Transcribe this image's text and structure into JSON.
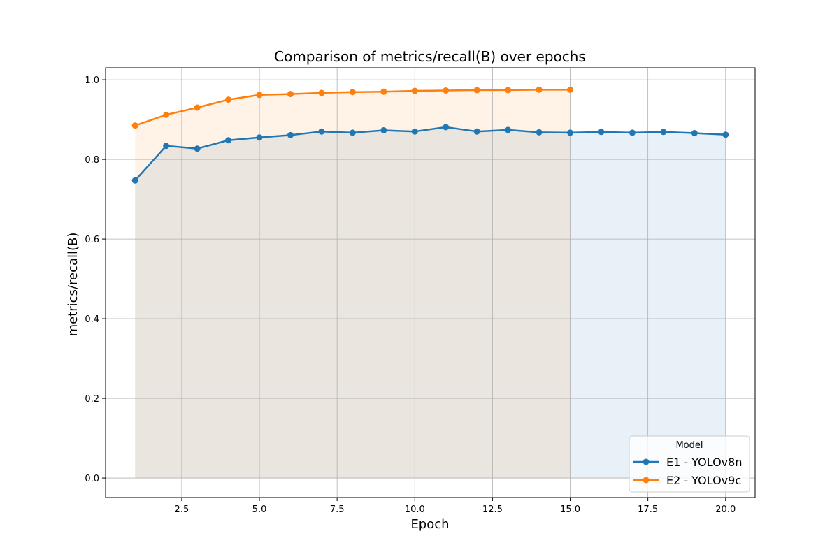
{
  "chart_data": {
    "type": "line",
    "title": "Comparison of metrics/recall(B) over epochs",
    "xlabel": "Epoch",
    "ylabel": "metrics/recall(B)",
    "xlim": [
      0.05,
      20.95
    ],
    "ylim": [
      -0.049,
      1.03
    ],
    "xticks": [
      2.5,
      5.0,
      7.5,
      10.0,
      12.5,
      15.0,
      17.5,
      20.0
    ],
    "xtick_labels": [
      "2.5",
      "5.0",
      "7.5",
      "10.0",
      "12.5",
      "15.0",
      "17.5",
      "20.0"
    ],
    "yticks": [
      0.0,
      0.2,
      0.4,
      0.6,
      0.8,
      1.0
    ],
    "ytick_labels": [
      "0.0",
      "0.2",
      "0.4",
      "0.6",
      "0.8",
      "1.0"
    ],
    "grid": true,
    "fill_under": true,
    "legend": {
      "title": "Model",
      "position": "bottom-right"
    },
    "series": [
      {
        "name": "E1 - YOLOv8n",
        "color": "#1f77b4",
        "x": [
          1,
          2,
          3,
          4,
          5,
          6,
          7,
          8,
          9,
          10,
          11,
          12,
          13,
          14,
          15,
          16,
          17,
          18,
          19,
          20
        ],
        "values": [
          0.747,
          0.834,
          0.827,
          0.848,
          0.855,
          0.861,
          0.87,
          0.867,
          0.873,
          0.87,
          0.881,
          0.87,
          0.874,
          0.868,
          0.867,
          0.869,
          0.867,
          0.869,
          0.866,
          0.862
        ]
      },
      {
        "name": "E2 - YOLOv9c",
        "color": "#ff7f0e",
        "x": [
          1,
          2,
          3,
          4,
          5,
          6,
          7,
          8,
          9,
          10,
          11,
          12,
          13,
          14,
          15
        ],
        "values": [
          0.885,
          0.912,
          0.93,
          0.95,
          0.962,
          0.964,
          0.967,
          0.969,
          0.97,
          0.972,
          0.973,
          0.974,
          0.974,
          0.975,
          0.975
        ]
      }
    ]
  }
}
